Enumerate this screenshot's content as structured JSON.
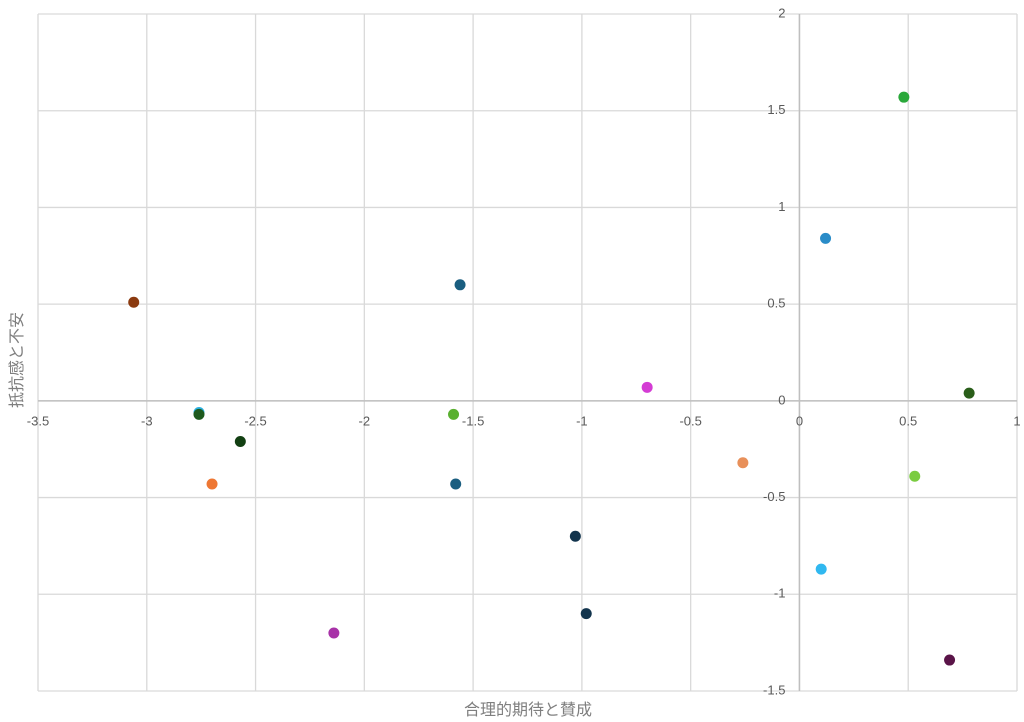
{
  "chart_data": {
    "type": "scatter",
    "x_label": "合理的期待と賛成",
    "y_label": "抵抗感と不安",
    "x": [
      -3.06,
      -2.76,
      -2.76,
      -2.57,
      -2.7,
      -2.14,
      -1.56,
      -1.59,
      -1.58,
      -1.03,
      -0.98,
      -0.7,
      -0.26,
      0.12,
      0.1,
      0.48,
      0.53,
      0.78,
      0.69
    ],
    "values": [
      0.51,
      -0.06,
      -0.07,
      -0.21,
      -0.43,
      -1.2,
      0.6,
      -0.07,
      -0.43,
      -0.7,
      -1.1,
      0.07,
      -0.32,
      0.84,
      -0.87,
      1.57,
      -0.39,
      0.04,
      -1.34
    ],
    "colors": [
      "#8b3a0f",
      "#2ab0e0",
      "#1e5a1e",
      "#123f12",
      "#ee7733",
      "#a832a8",
      "#1a5e80",
      "#5ab030",
      "#1a5e80",
      "#12344d",
      "#12344d",
      "#d43cd4",
      "#e8905a",
      "#2a8cc8",
      "#30b8f0",
      "#2aa83a",
      "#7acc40",
      "#2a5e1a",
      "#5a1448"
    ],
    "xlim": [
      -3.5,
      1
    ],
    "ylim": [
      -1.5,
      2
    ],
    "xticks": [
      -3.5,
      -3,
      -2.5,
      -2,
      -1.5,
      -1,
      -0.5,
      0,
      0.5,
      1
    ],
    "yticks": [
      -1.5,
      -1,
      -0.5,
      0,
      0.5,
      1,
      1.5,
      2
    ],
    "grid": true
  }
}
